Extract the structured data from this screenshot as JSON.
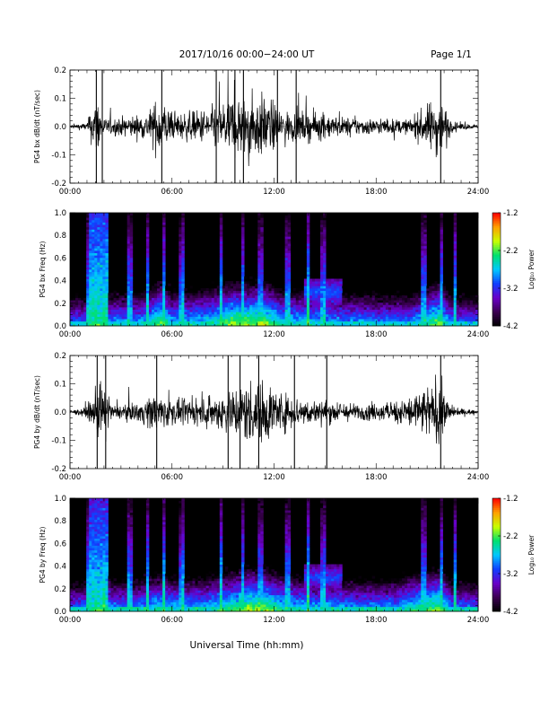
{
  "header": {
    "title": "2017/10/16  00:00−24:00 UT",
    "page": "Page 1/1"
  },
  "xaxis": {
    "label": "Universal Time (hh:mm)",
    "ticks": [
      "00:00",
      "06:00",
      "12:00",
      "18:00",
      "24:00"
    ],
    "range_hours": [
      0,
      24
    ]
  },
  "colorbar": {
    "label": "Log₁₀ Power",
    "ticks": [
      "-1.2",
      "-2.2",
      "-3.2",
      "-4.2"
    ],
    "range": [
      -4.2,
      -1.2
    ],
    "colors": [
      "#000000",
      "#3a0050",
      "#6a00c8",
      "#1040ff",
      "#00c8ff",
      "#00e070",
      "#c8ff00",
      "#ffa000",
      "#ff0000"
    ]
  },
  "chart_data": [
    {
      "type": "line",
      "ylabel": "PG4 bx dB/dt (nT/sec)",
      "ylim": [
        -0.2,
        0.2
      ],
      "yticks": [
        "0.2",
        "0.1",
        "0.0",
        "-0.1",
        "-0.2"
      ],
      "x_range_hours": [
        0,
        24
      ],
      "amplitude_envelope": [
        {
          "t": 0.0,
          "amp": 0.012
        },
        {
          "t": 1.0,
          "amp": 0.025
        },
        {
          "t": 1.3,
          "amp": 0.12
        },
        {
          "t": 1.6,
          "amp": 0.2
        },
        {
          "t": 2.0,
          "amp": 0.05
        },
        {
          "t": 3.0,
          "amp": 0.06
        },
        {
          "t": 4.5,
          "amp": 0.08
        },
        {
          "t": 5.3,
          "amp": 0.2
        },
        {
          "t": 6.0,
          "amp": 0.08
        },
        {
          "t": 7.5,
          "amp": 0.1
        },
        {
          "t": 8.5,
          "amp": 0.13
        },
        {
          "t": 9.5,
          "amp": 0.2
        },
        {
          "t": 10.2,
          "amp": 0.2
        },
        {
          "t": 11.5,
          "amp": 0.2
        },
        {
          "t": 12.5,
          "amp": 0.1
        },
        {
          "t": 14.5,
          "amp": 0.09
        },
        {
          "t": 16.0,
          "amp": 0.06
        },
        {
          "t": 18.0,
          "amp": 0.05
        },
        {
          "t": 20.0,
          "amp": 0.045
        },
        {
          "t": 21.7,
          "amp": 0.2
        },
        {
          "t": 22.5,
          "amp": 0.03
        },
        {
          "t": 24.0,
          "amp": 0.01
        }
      ],
      "spikes_hours": [
        1.55,
        1.9,
        5.4,
        8.6,
        9.7,
        10.2,
        12.2,
        13.3,
        21.8
      ]
    },
    {
      "type": "heatmap",
      "ylabel": "PG4 bx Freq (Hz)",
      "ylim": [
        0.0,
        1.0
      ],
      "yticks": [
        "1.0",
        "0.8",
        "0.6",
        "0.4",
        "0.2",
        "0.0"
      ],
      "x_range_hours": [
        0,
        24
      ],
      "z_range": [
        -4.2,
        -1.2
      ],
      "vertical_bands_hours": [
        1.1,
        1.5,
        2.0,
        3.5,
        4.6,
        5.5,
        6.6,
        8.9,
        10.2,
        11.2,
        12.8,
        14.0,
        14.9,
        20.8,
        21.8,
        22.6
      ],
      "features": [
        {
          "name": "broadband_morning",
          "t_start": 1.2,
          "t_end": 2.2,
          "f_max": 1.0,
          "level": -2.4
        },
        {
          "name": "pc1_band",
          "t_start": 13.8,
          "t_end": 16.0,
          "f_center": 0.3,
          "level": -3.0
        },
        {
          "name": "low_freq_floor",
          "t_start": 0.0,
          "t_end": 24.0,
          "f_max": 0.05,
          "level": -2.6
        }
      ]
    },
    {
      "type": "line",
      "ylabel": "PG4 by dB/dt (nT/sec)",
      "ylim": [
        -0.2,
        0.2
      ],
      "yticks": [
        "0.2",
        "0.1",
        "0.0",
        "-0.1",
        "-0.2"
      ],
      "x_range_hours": [
        0,
        24
      ],
      "amplitude_envelope": [
        {
          "t": 0.0,
          "amp": 0.01
        },
        {
          "t": 1.0,
          "amp": 0.03
        },
        {
          "t": 1.4,
          "amp": 0.12
        },
        {
          "t": 1.8,
          "amp": 0.2
        },
        {
          "t": 2.5,
          "amp": 0.04
        },
        {
          "t": 4.0,
          "amp": 0.06
        },
        {
          "t": 5.0,
          "amp": 0.12
        },
        {
          "t": 6.5,
          "amp": 0.07
        },
        {
          "t": 8.0,
          "amp": 0.08
        },
        {
          "t": 9.5,
          "amp": 0.15
        },
        {
          "t": 10.5,
          "amp": 0.2
        },
        {
          "t": 11.5,
          "amp": 0.2
        },
        {
          "t": 12.5,
          "amp": 0.12
        },
        {
          "t": 14.0,
          "amp": 0.08
        },
        {
          "t": 15.5,
          "amp": 0.07
        },
        {
          "t": 17.0,
          "amp": 0.05
        },
        {
          "t": 19.0,
          "amp": 0.06
        },
        {
          "t": 21.7,
          "amp": 0.2
        },
        {
          "t": 22.5,
          "amp": 0.03
        },
        {
          "t": 24.0,
          "amp": 0.01
        }
      ],
      "spikes_hours": [
        1.6,
        2.1,
        5.1,
        9.3,
        10.0,
        11.1,
        13.2,
        15.1,
        21.8
      ]
    },
    {
      "type": "heatmap",
      "ylabel": "PG4 by Freq (Hz)",
      "ylim": [
        0.0,
        1.0
      ],
      "yticks": [
        "1.0",
        "0.8",
        "0.6",
        "0.4",
        "0.2",
        "0.0"
      ],
      "x_range_hours": [
        0,
        24
      ],
      "z_range": [
        -4.2,
        -1.2
      ],
      "vertical_bands_hours": [
        1.1,
        1.5,
        2.0,
        3.5,
        4.6,
        5.5,
        6.6,
        8.9,
        10.2,
        11.2,
        12.8,
        14.0,
        14.9,
        20.8,
        21.8,
        22.6
      ],
      "features": [
        {
          "name": "broadband_morning",
          "t_start": 1.2,
          "t_end": 2.2,
          "f_max": 1.0,
          "level": -2.5
        },
        {
          "name": "pc1_band",
          "t_start": 13.8,
          "t_end": 16.0,
          "f_center": 0.3,
          "level": -3.1
        },
        {
          "name": "low_freq_floor",
          "t_start": 0.0,
          "t_end": 24.0,
          "f_max": 0.05,
          "level": -2.5
        }
      ]
    }
  ]
}
